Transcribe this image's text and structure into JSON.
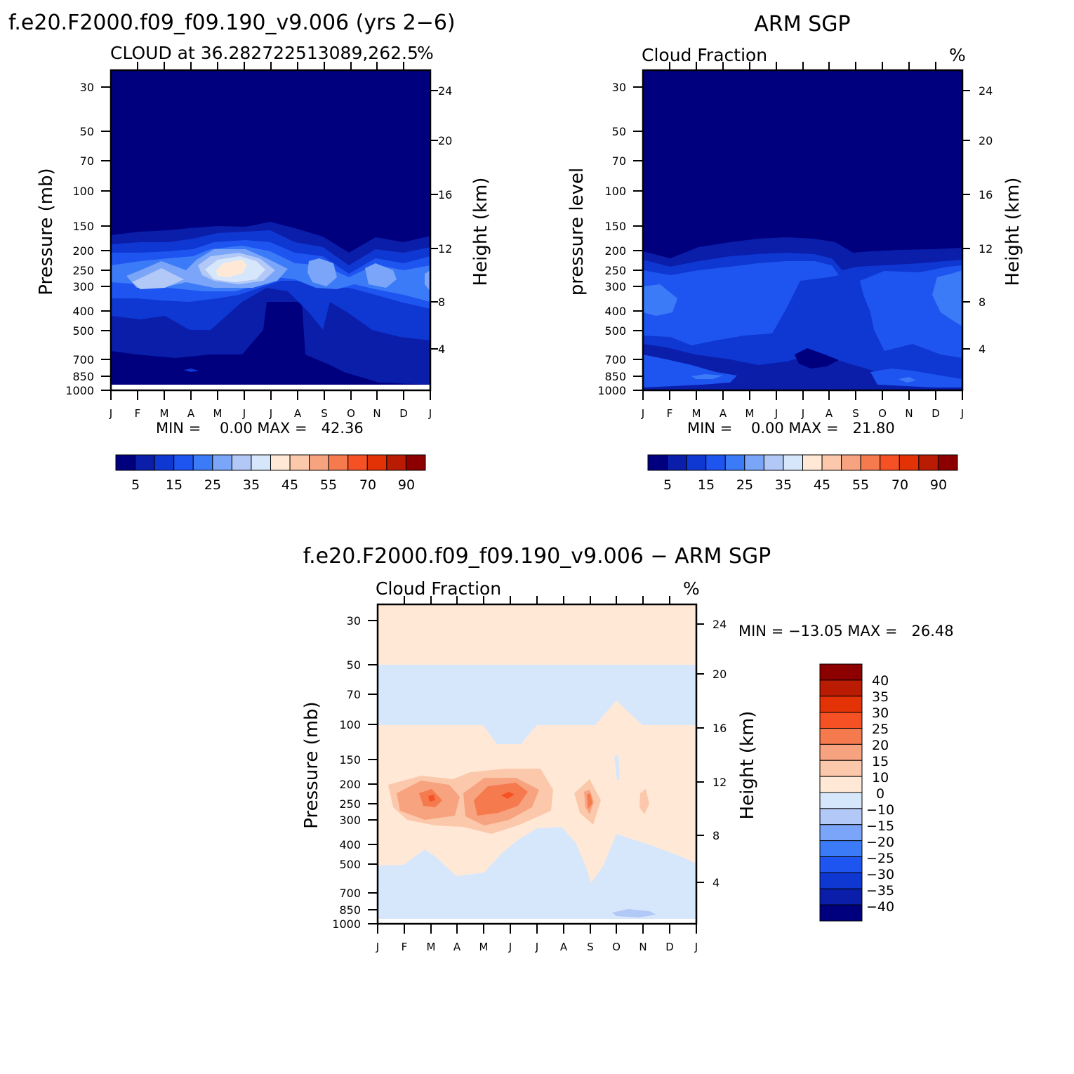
{
  "panels": [
    {
      "title": "f.e20.F2000.f09_f09.190_v9.006 (yrs 2−6)",
      "subtitle_left": "CLOUD at 36.282722513089,262.5",
      "subtitle_right": "%",
      "ylabel": "Pressure (mb)",
      "ylabel_right": "Height (km)",
      "stats": "MIN =    0.00 MAX =   42.36"
    },
    {
      "title": "ARM SGP",
      "subtitle_left": "Cloud Fraction",
      "subtitle_right": "%",
      "ylabel": "pressure level",
      "ylabel_right": "Height (km)",
      "stats": "MIN =    0.00 MAX =   21.80"
    },
    {
      "title": "f.e20.F2000.f09_f09.190_v9.006 − ARM SGP",
      "subtitle_left": "Cloud Fraction",
      "subtitle_right": "%",
      "ylabel": "Pressure (mb)",
      "ylabel_right": "Height (km)",
      "stats": "MIN = −13.05 MAX =   26.48"
    }
  ],
  "chart_data": [
    {
      "type": "heatmap",
      "title": "f.e20.F2000.f09_f09.190_v9.006 (yrs 2−6)",
      "subtitle": "CLOUD at 36.282722513089,262.5",
      "units": "%",
      "xlabel": "",
      "ylabel": "Pressure (mb)",
      "ylabel_right": "Height (km)",
      "x_ticks": [
        "J",
        "F",
        "M",
        "A",
        "M",
        "J",
        "J",
        "A",
        "S",
        "O",
        "N",
        "D",
        "J"
      ],
      "y_ticks": [
        30,
        50,
        70,
        100,
        150,
        200,
        250,
        300,
        400,
        500,
        700,
        850,
        1000
      ],
      "y_ticks_right": [
        24,
        20,
        16,
        12,
        8,
        4
      ],
      "y_scale": "log",
      "ylim": [
        1000,
        25
      ],
      "levels": [
        0,
        5,
        10,
        15,
        20,
        25,
        30,
        35,
        40,
        45,
        50,
        55,
        60,
        70,
        80,
        90,
        100
      ],
      "colorbar_labels": [
        "5",
        "15",
        "25",
        "35",
        "45",
        "55",
        "70",
        "90"
      ],
      "colors": [
        "#00007F",
        "#0A1EAA",
        "#0F37D2",
        "#1E55F0",
        "#3C7BF7",
        "#7AA5F8",
        "#B2C8F7",
        "#D7E7FB",
        "#FFE9D6",
        "#FCC8AB",
        "#F8A37F",
        "#F57A4E",
        "#F55125",
        "#E33306",
        "#BA1B03",
        "#8C0000"
      ],
      "grid": false,
      "min": 0.0,
      "max": 42.36,
      "stats_text": "MIN =    0.00 MAX =   42.36"
    },
    {
      "type": "heatmap",
      "title": "ARM SGP",
      "subtitle": "Cloud Fraction",
      "units": "%",
      "xlabel": "",
      "ylabel": "pressure level",
      "ylabel_right": "Height (km)",
      "x_ticks": [
        "J",
        "F",
        "M",
        "A",
        "M",
        "J",
        "J",
        "A",
        "S",
        "O",
        "N",
        "D",
        "J"
      ],
      "y_ticks": [
        30,
        50,
        70,
        100,
        150,
        200,
        250,
        300,
        400,
        500,
        700,
        850,
        1000
      ],
      "y_ticks_right": [
        24,
        20,
        16,
        12,
        8,
        4
      ],
      "y_scale": "log",
      "ylim": [
        1000,
        25
      ],
      "levels": [
        0,
        5,
        10,
        15,
        20,
        25,
        30,
        35,
        40,
        45,
        50,
        55,
        60,
        70,
        80,
        90,
        100
      ],
      "colorbar_labels": [
        "5",
        "15",
        "25",
        "35",
        "45",
        "55",
        "70",
        "90"
      ],
      "colors": [
        "#00007F",
        "#0A1EAA",
        "#0F37D2",
        "#1E55F0",
        "#3C7BF7",
        "#7AA5F8",
        "#B2C8F7",
        "#D7E7FB",
        "#FFE9D6",
        "#FCC8AB",
        "#F8A37F",
        "#F57A4E",
        "#F55125",
        "#E33306",
        "#BA1B03",
        "#8C0000"
      ],
      "grid": false,
      "min": 0.0,
      "max": 21.8,
      "stats_text": "MIN =    0.00 MAX =   21.80"
    },
    {
      "type": "heatmap",
      "title": "f.e20.F2000.f09_f09.190_v9.006 − ARM SGP",
      "subtitle": "Cloud Fraction",
      "units": "%",
      "xlabel": "",
      "ylabel": "Pressure (mb)",
      "ylabel_right": "Height (km)",
      "x_ticks": [
        "J",
        "F",
        "M",
        "A",
        "M",
        "J",
        "J",
        "A",
        "S",
        "O",
        "N",
        "D",
        "J"
      ],
      "y_ticks": [
        30,
        50,
        70,
        100,
        150,
        200,
        250,
        300,
        400,
        500,
        700,
        850,
        1000
      ],
      "y_ticks_right": [
        24,
        20,
        16,
        12,
        8,
        4
      ],
      "y_scale": "log",
      "ylim": [
        1000,
        25
      ],
      "levels": [
        -45,
        -40,
        -35,
        -30,
        -25,
        -20,
        -15,
        -10,
        0,
        10,
        15,
        20,
        25,
        30,
        35,
        40,
        45
      ],
      "colorbar_labels": [
        "40",
        "35",
        "30",
        "25",
        "20",
        "15",
        "10",
        "0",
        "−10",
        "−15",
        "−20",
        "−25",
        "−30",
        "−35",
        "−40"
      ],
      "colors": [
        "#00007F",
        "#0A1EAA",
        "#0F37D2",
        "#1E55F0",
        "#3C7BF7",
        "#7AA5F8",
        "#B2C8F7",
        "#D7E7FB",
        "#FFE9D6",
        "#FCC8AB",
        "#F8A37F",
        "#F57A4E",
        "#F55125",
        "#E33306",
        "#BA1B03",
        "#8C0000"
      ],
      "grid": false,
      "min": -13.05,
      "max": 26.48,
      "stats_text": "MIN = −13.05 MAX =   26.48"
    }
  ]
}
